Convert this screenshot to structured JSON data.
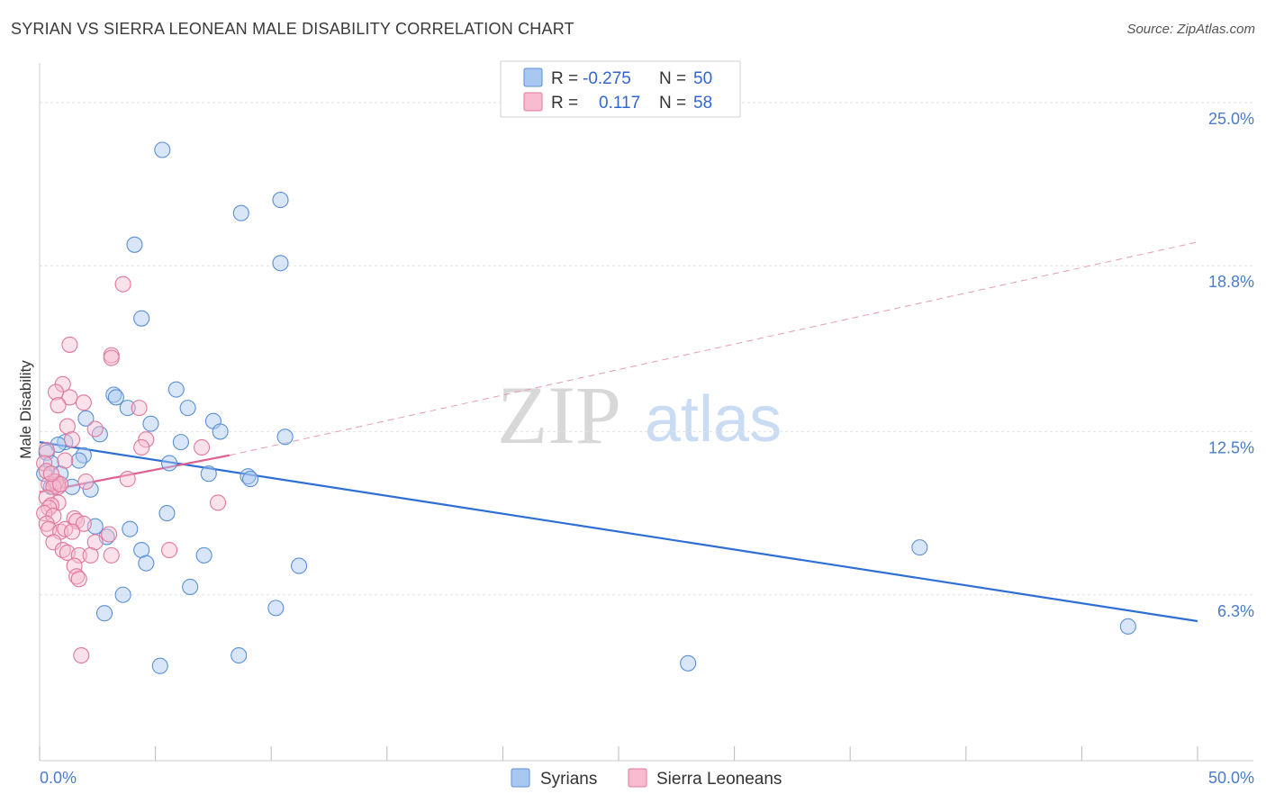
{
  "title": "SYRIAN VS SIERRA LEONEAN MALE DISABILITY CORRELATION CHART",
  "source": "Source: ZipAtlas.com",
  "watermark": {
    "zip": "ZIP",
    "atlas": "atlas"
  },
  "chart_data": {
    "type": "scatter",
    "title": "SYRIAN VS SIERRA LEONEAN MALE DISABILITY CORRELATION CHART",
    "xlabel": "",
    "ylabel": "Male Disability",
    "xlim": [
      0,
      50
    ],
    "ylim": [
      0,
      26.5
    ],
    "x_tick_labels": [
      "0.0%",
      "50.0%"
    ],
    "y_ticks": [
      6.3,
      12.5,
      18.8,
      25.0
    ],
    "y_tick_labels": [
      "6.3%",
      "12.5%",
      "18.8%",
      "25.0%"
    ],
    "grid": true,
    "legend": {
      "position": "top-center",
      "entries": [
        {
          "name": "Syrians",
          "r_label": "R =",
          "r_value": "-0.275",
          "n_label": "N =",
          "n_value": "50",
          "color": "#a9c8f0",
          "edge": "#5b8fd6"
        },
        {
          "name": "Sierra Leoneans",
          "r_label": "R =",
          "r_value": "0.117",
          "n_label": "N =",
          "n_value": "58",
          "color": "#f7bcd0",
          "edge": "#e0789c"
        }
      ]
    },
    "series": [
      {
        "name": "Syrians",
        "color": "#a9c8f0",
        "edge": "#5b8fd6",
        "trend": {
          "x": [
            0,
            50
          ],
          "y": [
            12.1,
            5.3
          ],
          "color": "#2e6fd4",
          "style": "solid"
        },
        "points": [
          [
            5.3,
            23.2
          ],
          [
            8.7,
            20.8
          ],
          [
            10.4,
            21.3
          ],
          [
            4.1,
            19.6
          ],
          [
            10.4,
            18.9
          ],
          [
            4.4,
            16.8
          ],
          [
            5.9,
            14.1
          ],
          [
            3.2,
            13.9
          ],
          [
            3.3,
            13.8
          ],
          [
            3.8,
            13.4
          ],
          [
            6.4,
            13.4
          ],
          [
            2.0,
            13.0
          ],
          [
            7.5,
            12.9
          ],
          [
            4.8,
            12.8
          ],
          [
            7.8,
            12.5
          ],
          [
            2.6,
            12.4
          ],
          [
            10.6,
            12.3
          ],
          [
            1.1,
            12.1
          ],
          [
            6.1,
            12.1
          ],
          [
            0.8,
            12.0
          ],
          [
            0.3,
            11.7
          ],
          [
            1.9,
            11.6
          ],
          [
            1.7,
            11.4
          ],
          [
            0.5,
            11.3
          ],
          [
            5.6,
            11.3
          ],
          [
            0.9,
            10.9
          ],
          [
            0.2,
            10.9
          ],
          [
            7.3,
            10.9
          ],
          [
            9.0,
            10.8
          ],
          [
            9.1,
            10.7
          ],
          [
            0.5,
            10.4
          ],
          [
            1.4,
            10.4
          ],
          [
            2.2,
            10.3
          ],
          [
            5.5,
            9.4
          ],
          [
            2.4,
            8.9
          ],
          [
            3.9,
            8.8
          ],
          [
            2.9,
            8.5
          ],
          [
            4.4,
            8.0
          ],
          [
            7.1,
            7.8
          ],
          [
            4.6,
            7.5
          ],
          [
            11.2,
            7.4
          ],
          [
            38.0,
            8.1
          ],
          [
            6.5,
            6.6
          ],
          [
            3.6,
            6.3
          ],
          [
            10.2,
            5.8
          ],
          [
            2.8,
            5.6
          ],
          [
            47.0,
            5.1
          ],
          [
            8.6,
            4.0
          ],
          [
            5.2,
            3.6
          ],
          [
            28.0,
            3.7
          ]
        ]
      },
      {
        "name": "Sierra Leoneans",
        "color": "#f7bcd0",
        "edge": "#e0789c",
        "trend": {
          "x": [
            0,
            8.2
          ],
          "y": [
            10.2,
            11.6
          ],
          "color": "#e06090",
          "style": "solid"
        },
        "trend_extended": {
          "x": [
            8.2,
            50
          ],
          "y": [
            11.6,
            19.7
          ],
          "color": "#e89ab6",
          "style": "dashed"
        },
        "points": [
          [
            3.6,
            18.1
          ],
          [
            1.3,
            15.8
          ],
          [
            3.1,
            15.4
          ],
          [
            3.1,
            15.3
          ],
          [
            1.0,
            14.3
          ],
          [
            0.7,
            14.0
          ],
          [
            1.3,
            13.8
          ],
          [
            1.9,
            13.6
          ],
          [
            0.8,
            13.5
          ],
          [
            4.3,
            13.4
          ],
          [
            1.2,
            12.7
          ],
          [
            4.6,
            12.2
          ],
          [
            1.4,
            12.2
          ],
          [
            4.4,
            11.9
          ],
          [
            7.0,
            11.9
          ],
          [
            0.3,
            11.8
          ],
          [
            1.1,
            11.4
          ],
          [
            0.2,
            11.3
          ],
          [
            0.3,
            11.0
          ],
          [
            0.6,
            10.6
          ],
          [
            0.8,
            10.5
          ],
          [
            0.8,
            10.4
          ],
          [
            0.4,
            10.5
          ],
          [
            0.7,
            10.6
          ],
          [
            0.6,
            10.4
          ],
          [
            2.0,
            10.6
          ],
          [
            3.8,
            10.7
          ],
          [
            0.3,
            10.0
          ],
          [
            0.8,
            9.8
          ],
          [
            0.5,
            9.7
          ],
          [
            0.4,
            9.6
          ],
          [
            0.2,
            9.4
          ],
          [
            0.6,
            9.3
          ],
          [
            1.5,
            9.2
          ],
          [
            1.6,
            9.1
          ],
          [
            1.9,
            9.0
          ],
          [
            0.3,
            9.0
          ],
          [
            0.4,
            8.8
          ],
          [
            0.9,
            8.7
          ],
          [
            1.1,
            8.8
          ],
          [
            1.4,
            8.7
          ],
          [
            3.0,
            8.6
          ],
          [
            7.7,
            9.8
          ],
          [
            2.4,
            8.3
          ],
          [
            0.6,
            8.3
          ],
          [
            1.0,
            8.0
          ],
          [
            1.2,
            7.9
          ],
          [
            1.7,
            7.8
          ],
          [
            2.2,
            7.8
          ],
          [
            3.1,
            7.8
          ],
          [
            5.6,
            8.0
          ],
          [
            1.5,
            7.4
          ],
          [
            1.6,
            7.0
          ],
          [
            1.7,
            6.9
          ],
          [
            1.8,
            4.0
          ],
          [
            0.9,
            10.5
          ],
          [
            2.4,
            12.6
          ],
          [
            0.5,
            10.9
          ]
        ]
      }
    ]
  }
}
